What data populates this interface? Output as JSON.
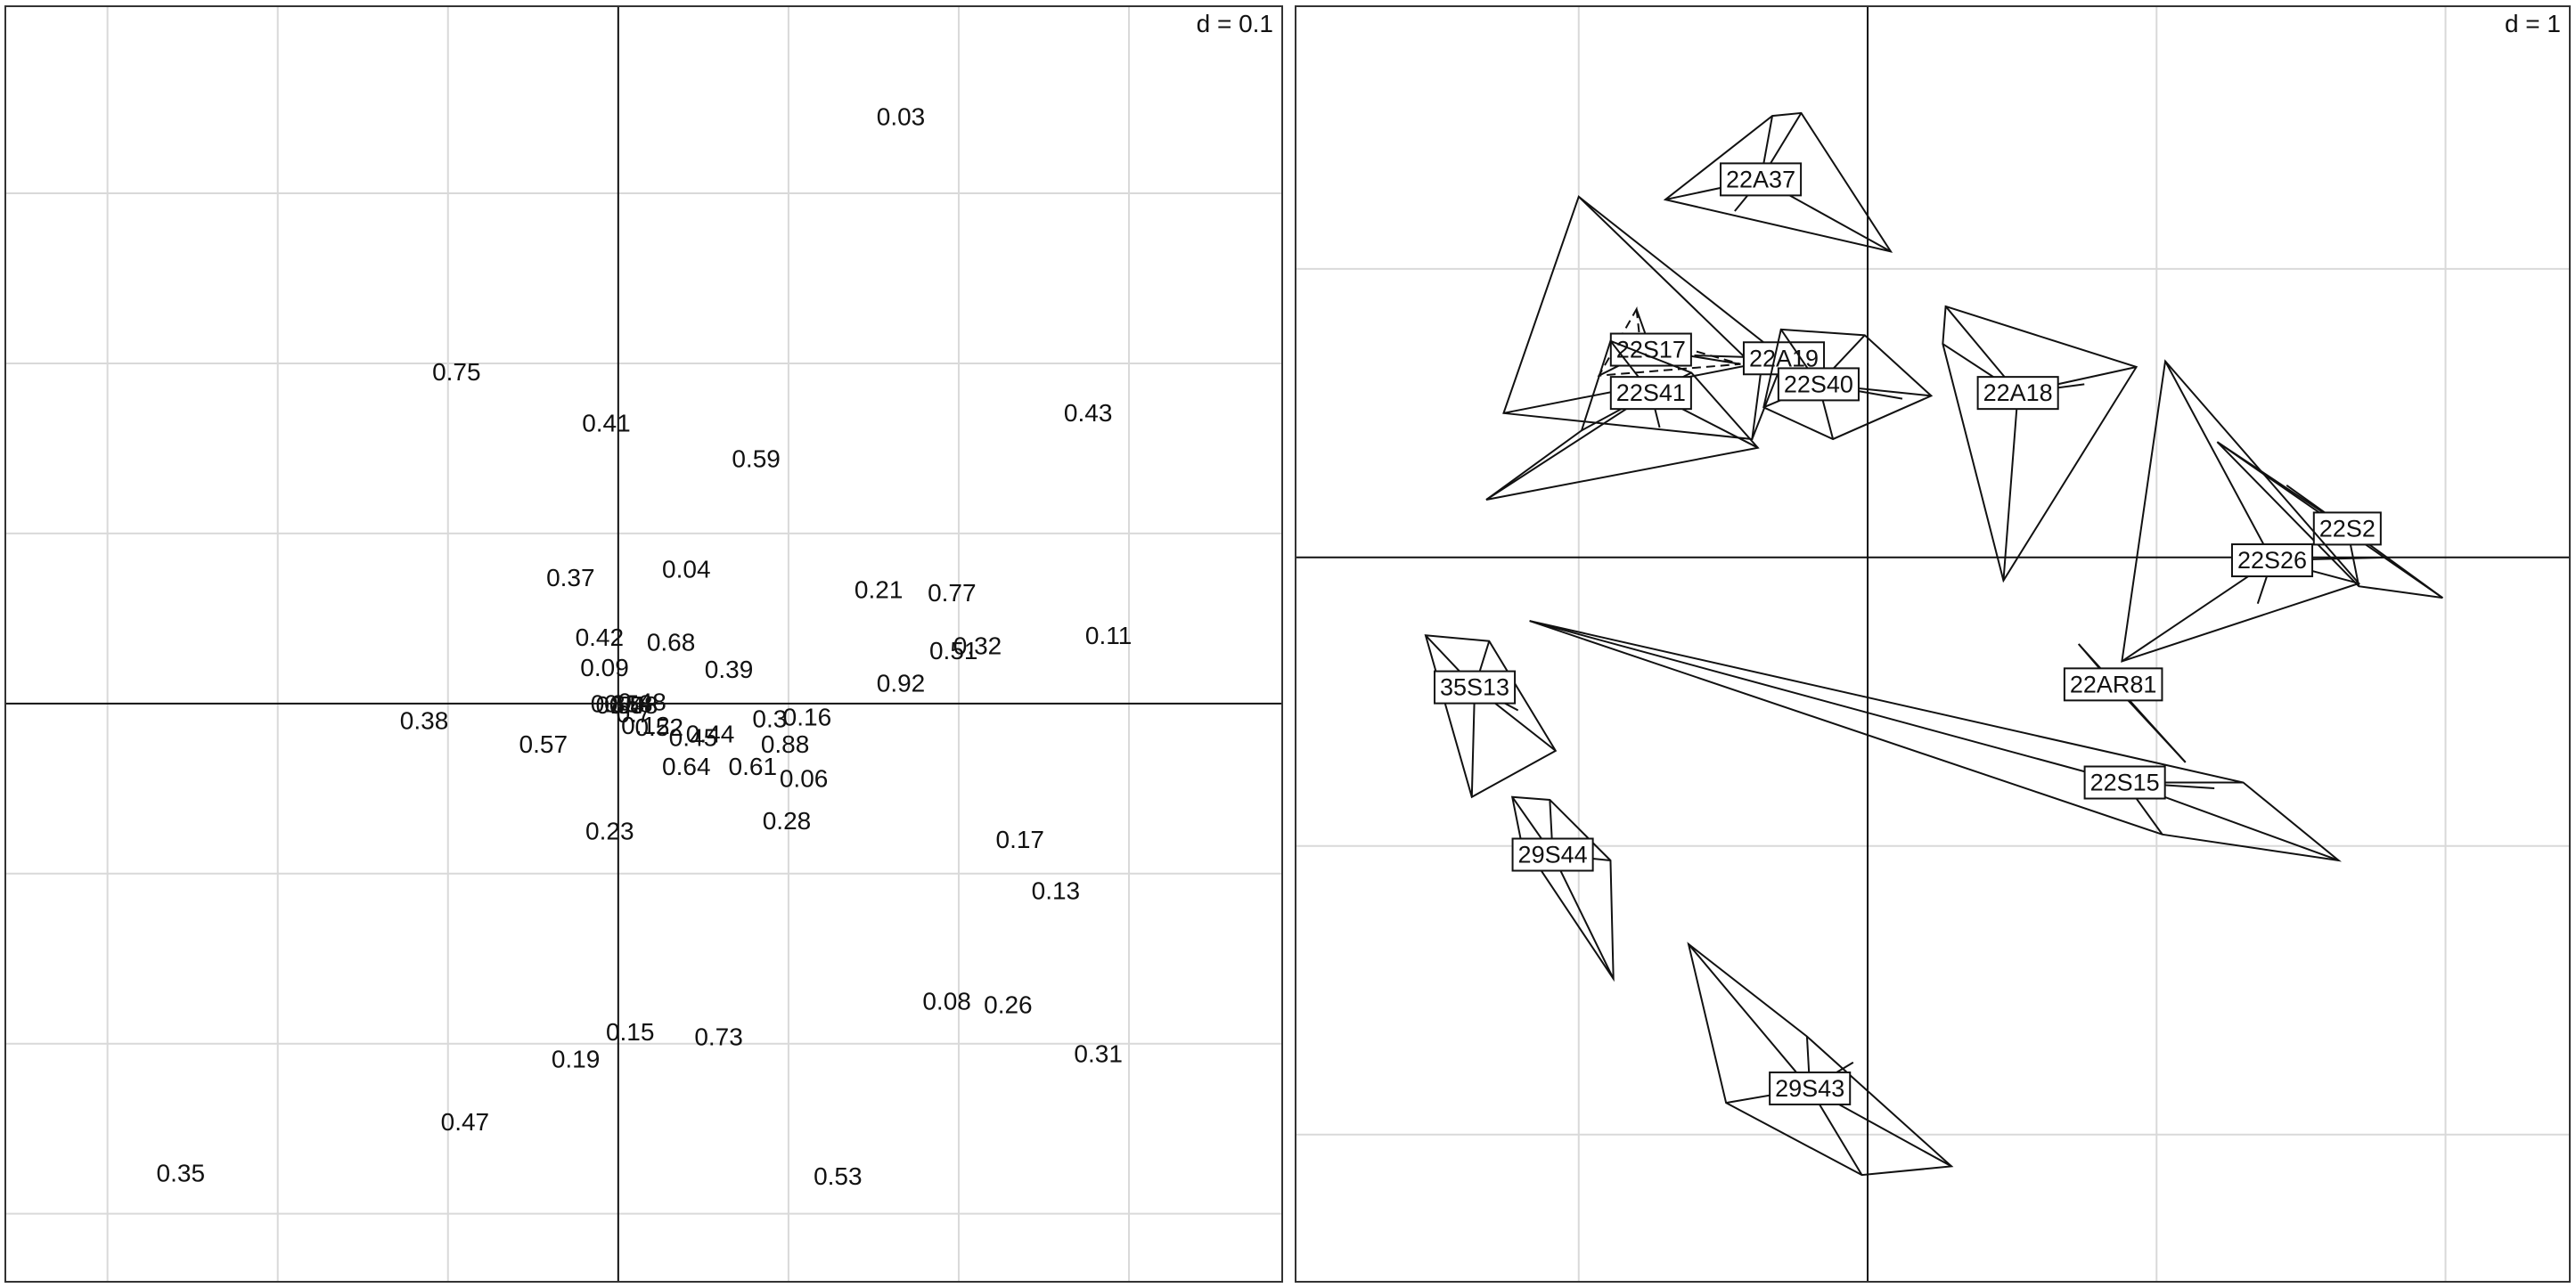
{
  "chart_data": [
    {
      "type": "scatter",
      "panel": "left",
      "scale_label": "d = 0.1",
      "grid": true,
      "x_gridlines": [
        -0.3,
        -0.2,
        -0.1,
        0.1,
        0.2,
        0.3
      ],
      "y_gridlines": [
        0.3,
        0.2,
        0.1,
        -0.1,
        -0.2,
        -0.3
      ],
      "xlim": [
        -0.36,
        0.39
      ],
      "ylim": [
        -0.34,
        0.41
      ],
      "points": [
        {
          "label": "0.03",
          "x": 0.166,
          "y": 0.345
        },
        {
          "label": "0.75",
          "x": -0.095,
          "y": 0.195
        },
        {
          "label": "0.41",
          "x": -0.007,
          "y": 0.165
        },
        {
          "label": "0.59",
          "x": 0.081,
          "y": 0.144
        },
        {
          "label": "0.43",
          "x": 0.276,
          "y": 0.171
        },
        {
          "label": "0.37",
          "x": -0.028,
          "y": 0.074
        },
        {
          "label": "0.04",
          "x": 0.04,
          "y": 0.079
        },
        {
          "label": "0.21",
          "x": 0.153,
          "y": 0.067
        },
        {
          "label": "0.77",
          "x": 0.196,
          "y": 0.065
        },
        {
          "label": "0.11",
          "x": 0.288,
          "y": 0.04
        },
        {
          "label": "0.42",
          "x": -0.011,
          "y": 0.039
        },
        {
          "label": "0.68",
          "x": 0.031,
          "y": 0.036
        },
        {
          "label": "0.32",
          "x": 0.211,
          "y": 0.034
        },
        {
          "label": "0.51",
          "x": 0.197,
          "y": 0.031
        },
        {
          "label": "0.09",
          "x": -0.008,
          "y": 0.021
        },
        {
          "label": "0.39",
          "x": 0.065,
          "y": 0.02
        },
        {
          "label": "0.92",
          "x": 0.166,
          "y": 0.012
        },
        {
          "label": "0.48",
          "x": 0.014,
          "y": 0.001
        },
        {
          "label": "0.18",
          "x": 0.006,
          "y": 0.0
        },
        {
          "label": "0.85",
          "x": -0.002,
          "y": 0.0
        },
        {
          "label": "0.54",
          "x": 0.001,
          "y": -0.001
        },
        {
          "label": "0.58",
          "x": 0.009,
          "y": -0.001
        },
        {
          "label": "0.38",
          "x": -0.114,
          "y": -0.01
        },
        {
          "label": "0.3",
          "x": 0.089,
          "y": -0.009
        },
        {
          "label": "0.16",
          "x": 0.111,
          "y": -0.008
        },
        {
          "label": "0.7",
          "x": 0.009,
          "y": -0.006
        },
        {
          "label": "0.12",
          "x": 0.016,
          "y": -0.013
        },
        {
          "label": "0.52",
          "x": 0.024,
          "y": -0.014
        },
        {
          "label": "0.44",
          "x": 0.054,
          "y": -0.018
        },
        {
          "label": "0.45",
          "x": 0.044,
          "y": -0.02
        },
        {
          "label": "0.57",
          "x": -0.044,
          "y": -0.024
        },
        {
          "label": "0.88",
          "x": 0.098,
          "y": -0.024
        },
        {
          "label": "0.64",
          "x": 0.04,
          "y": -0.037
        },
        {
          "label": "0.61",
          "x": 0.079,
          "y": -0.037
        },
        {
          "label": "0.06",
          "x": 0.109,
          "y": -0.044
        },
        {
          "label": "0.28",
          "x": 0.099,
          "y": -0.069
        },
        {
          "label": "0.23",
          "x": -0.005,
          "y": -0.075
        },
        {
          "label": "0.17",
          "x": 0.236,
          "y": -0.08
        },
        {
          "label": "0.13",
          "x": 0.257,
          "y": -0.11
        },
        {
          "label": "0.08",
          "x": 0.193,
          "y": -0.175
        },
        {
          "label": "0.26",
          "x": 0.229,
          "y": -0.177
        },
        {
          "label": "0.15",
          "x": 0.007,
          "y": -0.193
        },
        {
          "label": "0.73",
          "x": 0.059,
          "y": -0.196
        },
        {
          "label": "0.19",
          "x": -0.025,
          "y": -0.209
        },
        {
          "label": "0.31",
          "x": 0.282,
          "y": -0.206
        },
        {
          "label": "0.47",
          "x": -0.09,
          "y": -0.246
        },
        {
          "label": "0.35",
          "x": -0.257,
          "y": -0.276
        },
        {
          "label": "0.53",
          "x": 0.129,
          "y": -0.278
        }
      ]
    },
    {
      "type": "scatter",
      "subtype": "star-convex-hull",
      "panel": "right",
      "scale_label": "d = 1",
      "grid": true,
      "x_gridlines": [
        -1,
        1,
        2
      ],
      "y_gridlines": [
        1,
        -1,
        -2
      ],
      "xlim": [
        -1.98,
        2.43
      ],
      "ylim": [
        -2.51,
        1.91
      ],
      "groups": [
        {
          "name": "22A37",
          "cx": -0.37,
          "cy": 1.31,
          "hull": [
            [
              -0.7,
              1.24
            ],
            [
              -0.33,
              1.53
            ],
            [
              -0.23,
              1.54
            ],
            [
              0.08,
              1.06
            ]
          ],
          "points": [
            [
              -0.7,
              1.24
            ],
            [
              -0.33,
              1.53
            ],
            [
              -0.23,
              1.54
            ],
            [
              0.08,
              1.06
            ],
            [
              -0.46,
              1.2
            ]
          ]
        },
        {
          "name": "22S17",
          "cx": -0.75,
          "cy": 0.72,
          "dashed": true,
          "hull": [
            [
              -0.8,
              0.86
            ],
            [
              -0.79,
              0.77
            ],
            [
              -0.44,
              0.67
            ],
            [
              -0.93,
              0.63
            ]
          ],
          "points": [
            [
              -0.8,
              0.86
            ],
            [
              -0.79,
              0.77
            ],
            [
              -0.44,
              0.67
            ],
            [
              -0.93,
              0.63
            ],
            [
              -0.7,
              0.69
            ]
          ]
        },
        {
          "name": "22A19",
          "cx": -0.29,
          "cy": 0.69,
          "hull": [
            [
              -1.0,
              1.25
            ],
            [
              -0.37,
              0.64
            ],
            [
              -0.4,
              0.41
            ],
            [
              -1.26,
              0.5
            ]
          ],
          "points": [
            [
              -1.0,
              1.25
            ],
            [
              -0.37,
              0.64
            ],
            [
              -0.4,
              0.41
            ],
            [
              -1.26,
              0.5
            ],
            [
              -0.6,
              0.7
            ]
          ]
        },
        {
          "name": "22S40",
          "cx": -0.17,
          "cy": 0.6,
          "hull": [
            [
              -0.3,
              0.79
            ],
            [
              -0.01,
              0.77
            ],
            [
              0.22,
              0.56
            ],
            [
              -0.12,
              0.41
            ],
            [
              -0.36,
              0.52
            ]
          ],
          "points": [
            [
              -0.3,
              0.79
            ],
            [
              -0.01,
              0.77
            ],
            [
              0.22,
              0.56
            ],
            [
              -0.12,
              0.41
            ],
            [
              -0.36,
              0.52
            ],
            [
              0.12,
              0.55
            ]
          ]
        },
        {
          "name": "22S41",
          "cx": -0.75,
          "cy": 0.57,
          "hull": [
            [
              -0.89,
              0.75
            ],
            [
              -0.61,
              0.64
            ],
            [
              -0.38,
              0.38
            ],
            [
              -1.32,
              0.2
            ],
            [
              -0.99,
              0.44
            ]
          ],
          "points": [
            [
              -0.89,
              0.75
            ],
            [
              -0.61,
              0.64
            ],
            [
              -0.38,
              0.38
            ],
            [
              -1.32,
              0.2
            ],
            [
              -0.99,
              0.44
            ],
            [
              -0.72,
              0.45
            ]
          ]
        },
        {
          "name": "22A18",
          "cx": 0.52,
          "cy": 0.57,
          "hull": [
            [
              0.27,
              0.87
            ],
            [
              0.93,
              0.66
            ],
            [
              0.47,
              -0.08
            ],
            [
              0.26,
              0.74
            ]
          ],
          "points": [
            [
              0.27,
              0.87
            ],
            [
              0.93,
              0.66
            ],
            [
              0.47,
              -0.08
            ],
            [
              0.26,
              0.74
            ],
            [
              0.75,
              0.6
            ]
          ]
        },
        {
          "name": "22S2",
          "cx": 1.66,
          "cy": 0.1,
          "hull": [
            [
              1.21,
              0.4
            ],
            [
              1.99,
              -0.14
            ],
            [
              1.7,
              -0.1
            ]
          ],
          "points": [
            [
              1.21,
              0.4
            ],
            [
              1.99,
              -0.14
            ],
            [
              1.7,
              -0.1
            ],
            [
              1.45,
              0.25
            ]
          ]
        },
        {
          "name": "22S26",
          "cx": 1.4,
          "cy": -0.01,
          "hull": [
            [
              1.03,
              0.68
            ],
            [
              1.7,
              -0.09
            ],
            [
              0.88,
              -0.36
            ]
          ],
          "points": [
            [
              1.03,
              0.68
            ],
            [
              1.7,
              -0.09
            ],
            [
              0.88,
              -0.36
            ],
            [
              1.8,
              0.0
            ],
            [
              1.35,
              -0.16
            ]
          ]
        },
        {
          "name": "22AR81",
          "cx": 0.85,
          "cy": -0.44,
          "hull": [
            [
              0.73,
              -0.3
            ],
            [
              1.1,
              -0.71
            ]
          ],
          "points": [
            [
              0.73,
              -0.3
            ],
            [
              1.1,
              -0.71
            ]
          ]
        },
        {
          "name": "22S15",
          "cx": 0.89,
          "cy": -0.78,
          "hull": [
            [
              -1.17,
              -0.22
            ],
            [
              1.3,
              -0.78
            ],
            [
              1.63,
              -1.05
            ],
            [
              1.02,
              -0.96
            ]
          ],
          "points": [
            [
              -1.17,
              -0.22
            ],
            [
              1.3,
              -0.78
            ],
            [
              1.63,
              -1.05
            ],
            [
              1.02,
              -0.96
            ],
            [
              1.2,
              -0.8
            ]
          ]
        },
        {
          "name": "35S13",
          "cx": -1.36,
          "cy": -0.45,
          "hull": [
            [
              -1.53,
              -0.27
            ],
            [
              -1.31,
              -0.29
            ],
            [
              -1.08,
              -0.67
            ],
            [
              -1.37,
              -0.83
            ]
          ],
          "points": [
            [
              -1.53,
              -0.27
            ],
            [
              -1.31,
              -0.29
            ],
            [
              -1.08,
              -0.67
            ],
            [
              -1.37,
              -0.83
            ],
            [
              -1.21,
              -0.53
            ]
          ]
        },
        {
          "name": "29S44",
          "cx": -1.09,
          "cy": -1.03,
          "hull": [
            [
              -1.23,
              -0.83
            ],
            [
              -1.1,
              -0.84
            ],
            [
              -0.89,
              -1.05
            ],
            [
              -0.88,
              -1.46
            ],
            [
              -1.2,
              -0.98
            ]
          ],
          "points": [
            [
              -1.23,
              -0.83
            ],
            [
              -1.1,
              -0.84
            ],
            [
              -0.89,
              -1.05
            ],
            [
              -0.88,
              -1.46
            ],
            [
              -1.2,
              -0.98
            ],
            [
              -1.0,
              -1.08
            ]
          ]
        },
        {
          "name": "29S43",
          "cx": -0.2,
          "cy": -1.84,
          "hull": [
            [
              -0.62,
              -1.34
            ],
            [
              -0.21,
              -1.66
            ],
            [
              0.29,
              -2.11
            ],
            [
              -0.02,
              -2.14
            ],
            [
              -0.49,
              -1.89
            ]
          ],
          "points": [
            [
              -0.62,
              -1.34
            ],
            [
              -0.21,
              -1.66
            ],
            [
              0.29,
              -2.11
            ],
            [
              -0.02,
              -2.14
            ],
            [
              -0.49,
              -1.89
            ],
            [
              -0.05,
              -1.75
            ]
          ]
        }
      ]
    }
  ]
}
